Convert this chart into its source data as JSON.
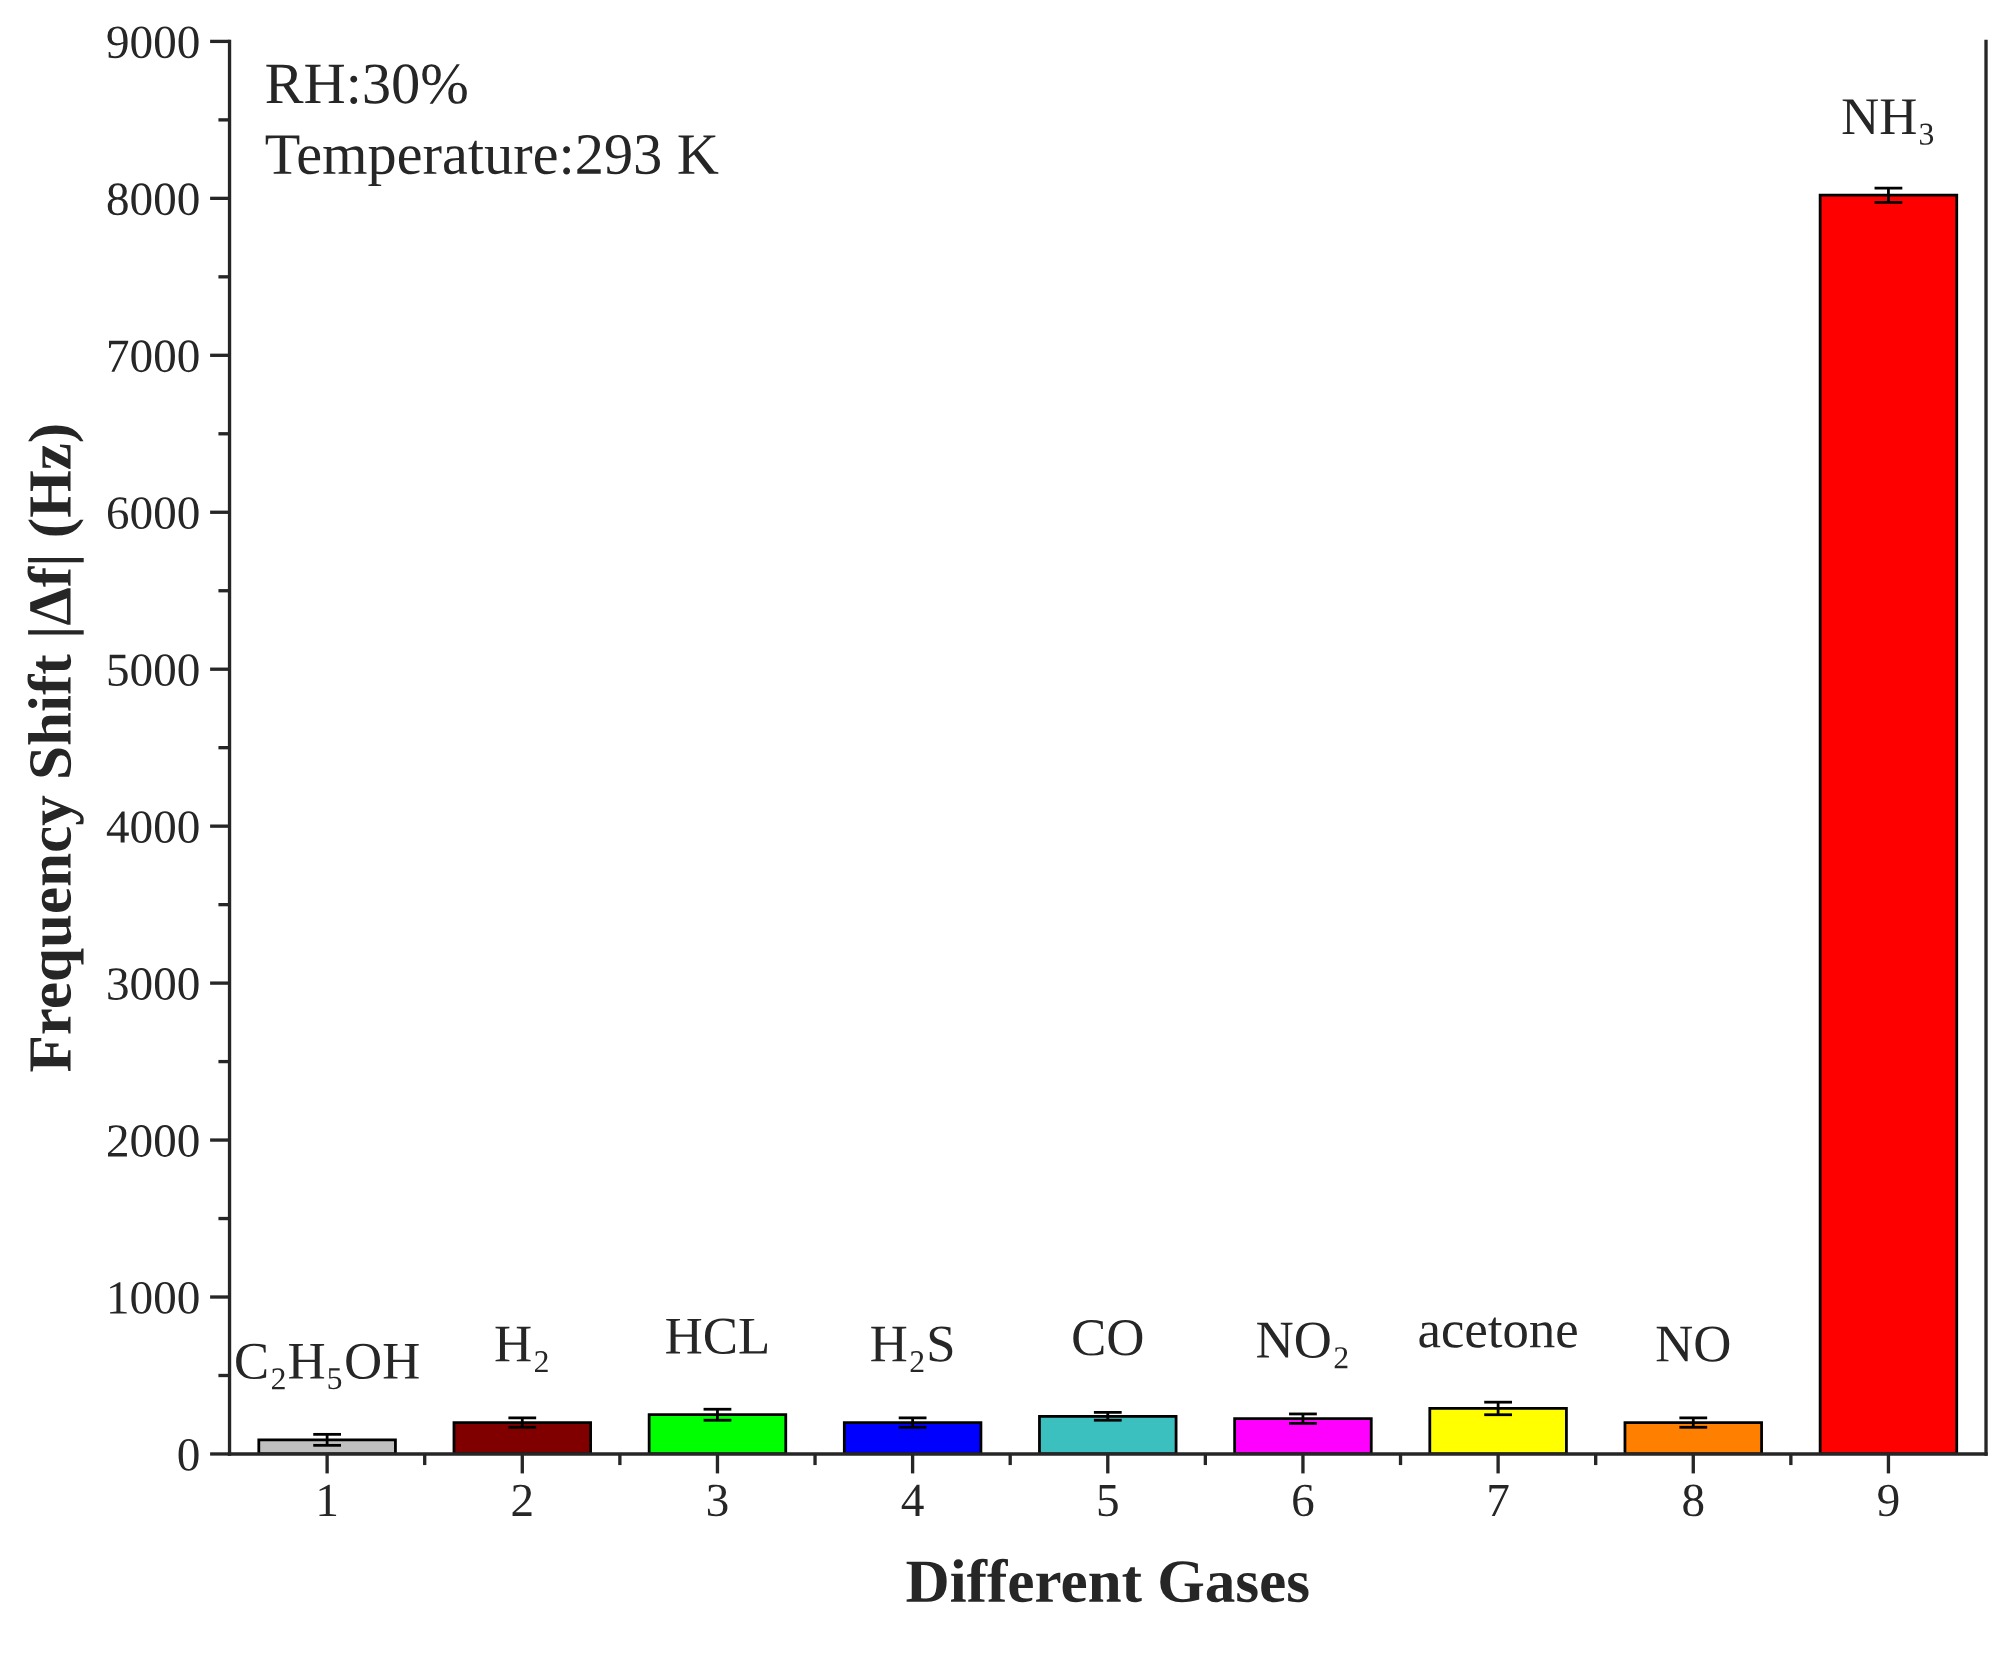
{
  "chart_data": {
    "type": "bar",
    "xlabel": "Different Gases",
    "ylabel": "Frequency Shift |Δf| (Hz)",
    "categories": [
      "1",
      "2",
      "3",
      "4",
      "5",
      "6",
      "7",
      "8",
      "9"
    ],
    "values": [
      90,
      200,
      250,
      200,
      240,
      225,
      290,
      200,
      8020
    ],
    "errors": [
      35,
      30,
      35,
      30,
      25,
      30,
      40,
      30,
      45
    ],
    "colors": [
      "#c0c0c0",
      "#800000",
      "#00ff00",
      "#0000ff",
      "#3cbfbf",
      "#ff00ff",
      "#ffff00",
      "#ff8000",
      "#ff0000"
    ],
    "ylim": [
      0,
      9000
    ],
    "yticks": [
      0,
      1000,
      2000,
      3000,
      4000,
      5000,
      6000,
      7000,
      8000,
      9000
    ],
    "grid": false,
    "legend": false,
    "annotations": [
      "RH:30%",
      "Temperature:293 K",
      {
        "text": "C₂H₅OH",
        "x": "1",
        "y": 90
      },
      {
        "text": "H₂",
        "x": "2",
        "y": 200
      },
      {
        "text": "HCL",
        "x": "3",
        "y": 250
      },
      {
        "text": "H₂S",
        "x": "4",
        "y": 200
      },
      {
        "text": "CO",
        "x": "5",
        "y": 240
      },
      {
        "text": "NO₂",
        "x": "6",
        "y": 225
      },
      {
        "text": "acetone",
        "x": "7",
        "y": 290
      },
      {
        "text": "NO",
        "x": "8",
        "y": 200
      },
      {
        "text": "NH₃",
        "x": "9",
        "y": 8020
      }
    ]
  }
}
